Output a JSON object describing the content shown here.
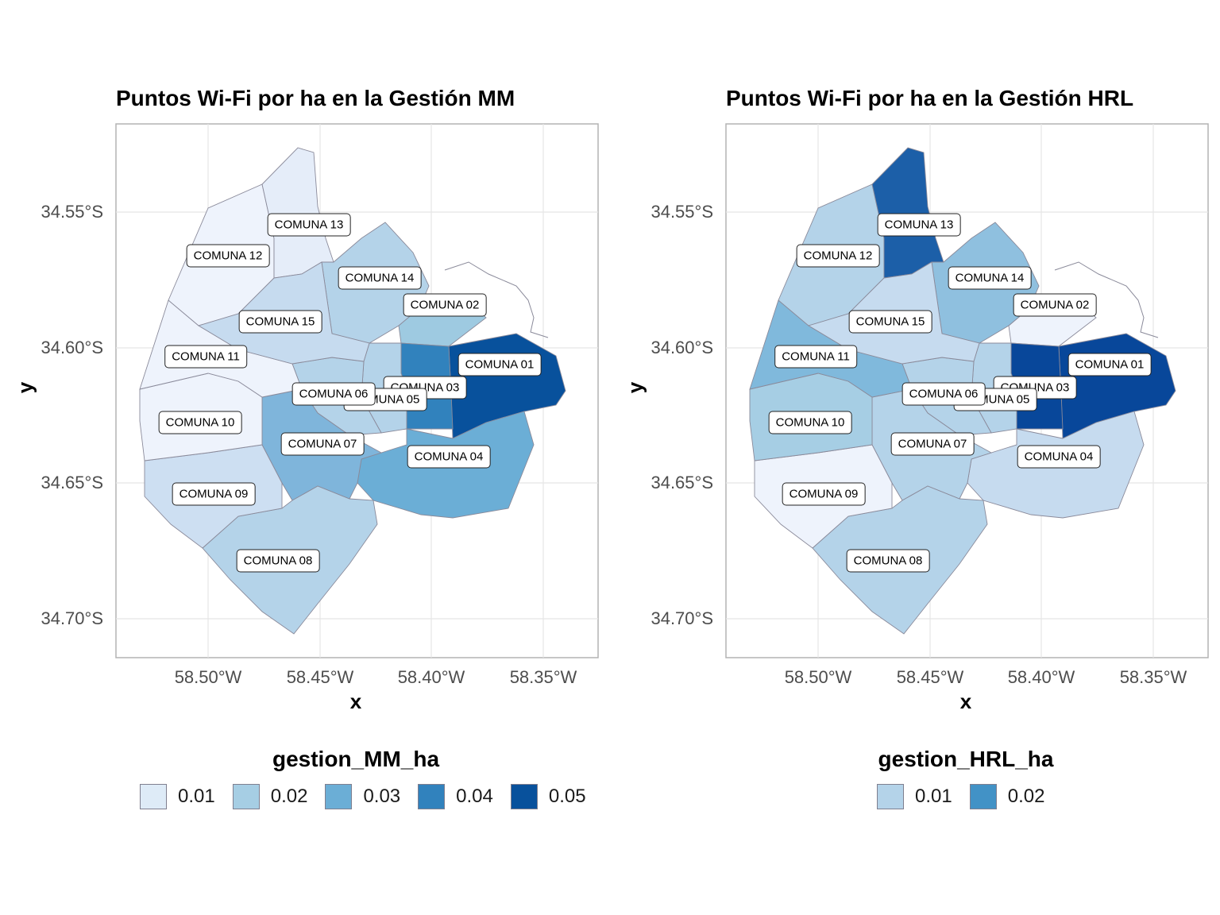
{
  "panels": [
    {
      "title": "Puntos Wi-Fi por ha en la Gestión MM",
      "xlabel": "x",
      "ylabel": "y",
      "yticks": [
        "34.55°S",
        "34.60°S",
        "34.65°S",
        "34.70°S"
      ],
      "xticks": [
        "58.50°W",
        "58.45°W",
        "58.40°W",
        "58.35°W"
      ],
      "legend_title": "gestion_MM_ha",
      "legend": [
        {
          "label": "0.01",
          "color": "#deebf7"
        },
        {
          "label": "0.02",
          "color": "#a6cee4"
        },
        {
          "label": "0.03",
          "color": "#6baed6"
        },
        {
          "label": "0.04",
          "color": "#3182bd"
        },
        {
          "label": "0.05",
          "color": "#08519c"
        }
      ],
      "comunas": [
        {
          "label": "COMUNA 01",
          "fill": "#08519c"
        },
        {
          "label": "COMUNA 02",
          "fill": "#9ecae1"
        },
        {
          "label": "COMUNA 03",
          "fill": "#3182bd"
        },
        {
          "label": "COMUNA 04",
          "fill": "#6baed6"
        },
        {
          "label": "COMUNA 05",
          "fill": "#b4d3e9"
        },
        {
          "label": "COMUNA 06",
          "fill": "#b4d3e9"
        },
        {
          "label": "COMUNA 07",
          "fill": "#7fb5db"
        },
        {
          "label": "COMUNA 08",
          "fill": "#b4d3e9"
        },
        {
          "label": "COMUNA 09",
          "fill": "#cddff2"
        },
        {
          "label": "COMUNA 10",
          "fill": "#eef3fc"
        },
        {
          "label": "COMUNA 11",
          "fill": "#eef3fc"
        },
        {
          "label": "COMUNA 12",
          "fill": "#eef3fc"
        },
        {
          "label": "COMUNA 13",
          "fill": "#e5edf9"
        },
        {
          "label": "COMUNA 14",
          "fill": "#b4d3e9"
        },
        {
          "label": "COMUNA 15",
          "fill": "#c6dbef"
        }
      ]
    },
    {
      "title": "Puntos Wi-Fi por ha en la Gestión HRL",
      "xlabel": "x",
      "ylabel": "y",
      "yticks": [
        "34.55°S",
        "34.60°S",
        "34.65°S",
        "34.70°S"
      ],
      "xticks": [
        "58.50°W",
        "58.45°W",
        "58.40°W",
        "58.35°W"
      ],
      "legend_title": "gestion_HRL_ha",
      "legend": [
        {
          "label": "0.01",
          "color": "#b4d3e9"
        },
        {
          "label": "0.02",
          "color": "#4292c6"
        }
      ],
      "comunas": [
        {
          "label": "COMUNA 01",
          "fill": "#08479a"
        },
        {
          "label": "COMUNA 02",
          "fill": "#eef3fc"
        },
        {
          "label": "COMUNA 03",
          "fill": "#08479a"
        },
        {
          "label": "COMUNA 04",
          "fill": "#c6dbef"
        },
        {
          "label": "COMUNA 05",
          "fill": "#b4d3e9"
        },
        {
          "label": "COMUNA 06",
          "fill": "#b4d3e9"
        },
        {
          "label": "COMUNA 07",
          "fill": "#b4d3e9"
        },
        {
          "label": "COMUNA 08",
          "fill": "#b4d3e9"
        },
        {
          "label": "COMUNA 09",
          "fill": "#eef3fc"
        },
        {
          "label": "COMUNA 10",
          "fill": "#a6cee4"
        },
        {
          "label": "COMUNA 11",
          "fill": "#80b9dc"
        },
        {
          "label": "COMUNA 12",
          "fill": "#b4d3e9"
        },
        {
          "label": "COMUNA 13",
          "fill": "#1c5fa8"
        },
        {
          "label": "COMUNA 14",
          "fill": "#8fc0df"
        },
        {
          "label": "COMUNA 15",
          "fill": "#c6dbef"
        }
      ]
    }
  ]
}
